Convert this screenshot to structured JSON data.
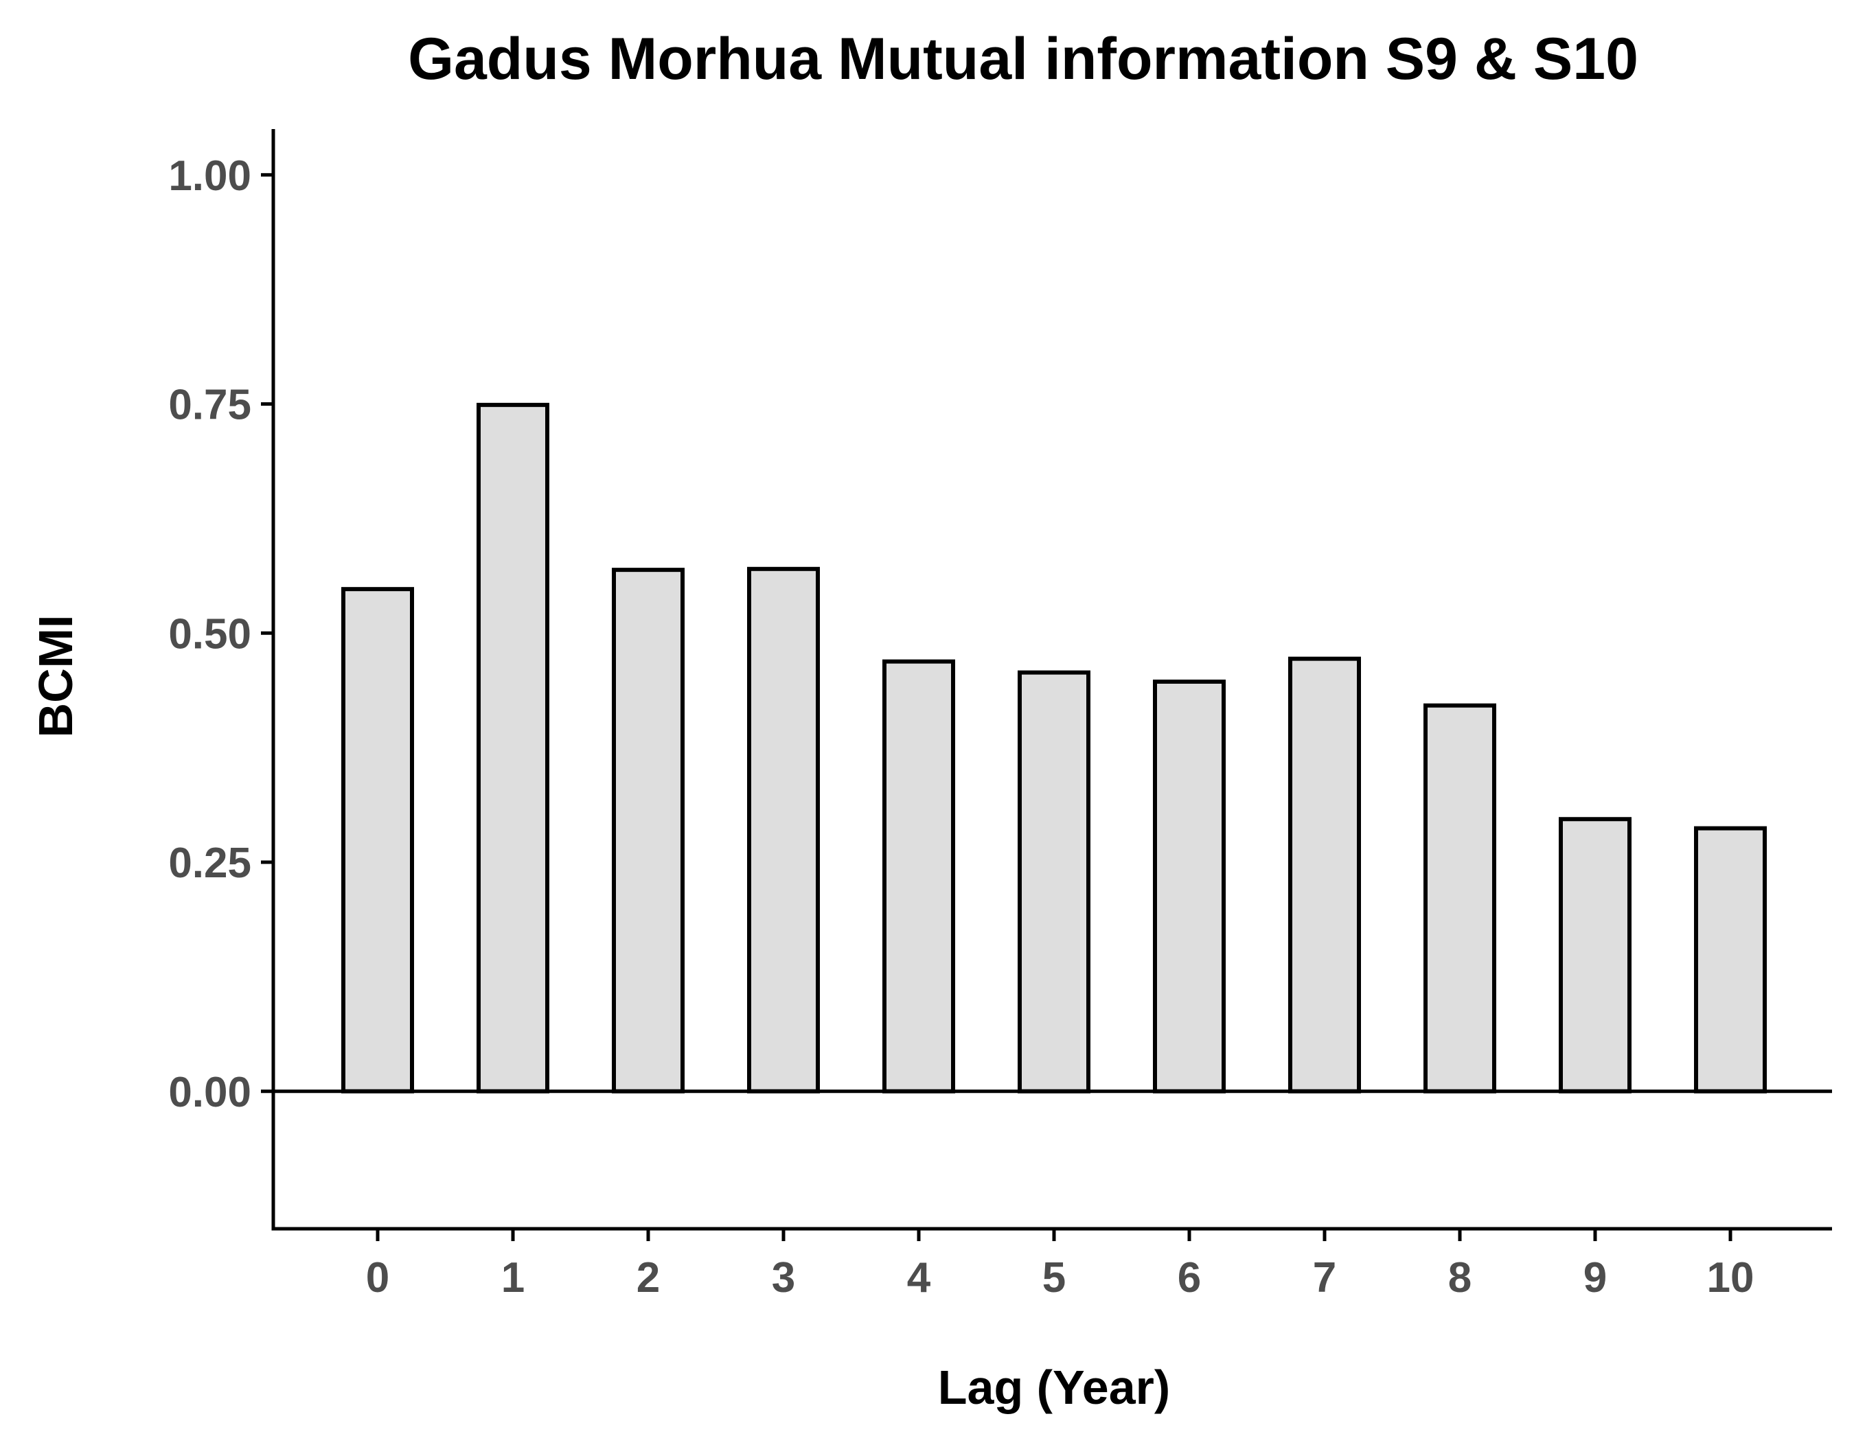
{
  "chart_data": {
    "type": "bar",
    "title": "Gadus Morhua Mutual information S9 & S10",
    "xlabel": "Lag (Year)",
    "ylabel": "BCMI",
    "categories": [
      "0",
      "1",
      "2",
      "3",
      "4",
      "5",
      "6",
      "7",
      "8",
      "9",
      "10"
    ],
    "values": [
      0.548,
      0.749,
      0.569,
      0.57,
      0.469,
      0.457,
      0.447,
      0.472,
      0.421,
      0.297,
      0.287
    ],
    "ylim": [
      -0.15,
      1.05
    ],
    "yticks": [
      "0.00",
      "0.25",
      "0.50",
      "0.75",
      "1.00"
    ],
    "grid": false,
    "legend": "none",
    "colors": {
      "bar_fill": "#dedede",
      "bar_stroke": "#000000",
      "axis": "#000000",
      "tick_label": "#4d4d4d"
    }
  }
}
